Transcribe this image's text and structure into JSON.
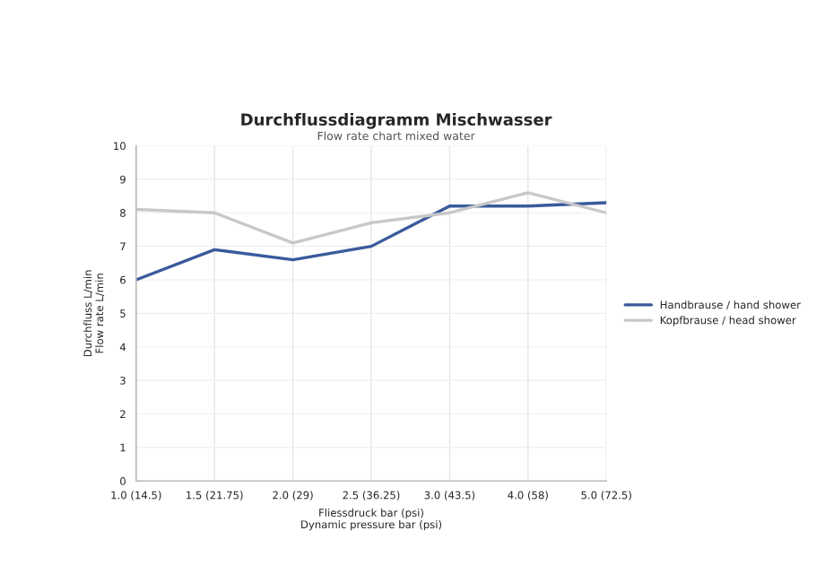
{
  "chart_data": {
    "type": "line",
    "title": "Durchflussdiagramm Mischwasser",
    "subtitle": "Flow rate chart mixed water",
    "xlabel": "Fliessdruck bar (psi)\nDynamic pressure bar (psi)",
    "ylabel": "Durchfluss L/min\nFlow rate L/min",
    "categories": [
      "1.0 (14.5)",
      "1.5 (21.75)",
      "2.0 (29)",
      "2.5 (36.25)",
      "3.0 (43.5)",
      "4.0 (58)",
      "5.0 (72.5)"
    ],
    "series": [
      {
        "name": "Handbrause / hand shower",
        "color": "#3a5a9c",
        "values": [
          6.0,
          6.9,
          6.6,
          7.0,
          8.2,
          8.2,
          8.3
        ]
      },
      {
        "name": "Kopfbrause / head shower",
        "color": "#c8c8c8",
        "values": [
          8.1,
          8.0,
          7.1,
          7.7,
          8.0,
          8.6,
          8.0
        ]
      }
    ],
    "ylim": [
      0,
      10
    ],
    "yticks": [
      0,
      1,
      2,
      3,
      4,
      5,
      6,
      7,
      8,
      9,
      10
    ],
    "grid": true,
    "legend": "right",
    "marker": "none",
    "line_style": "solid"
  }
}
